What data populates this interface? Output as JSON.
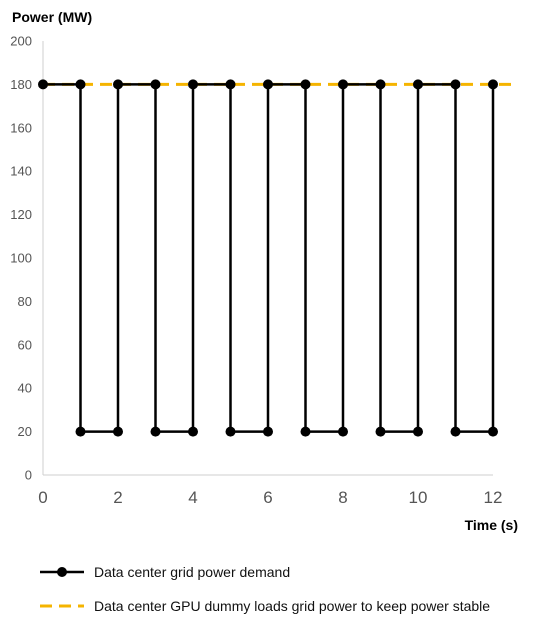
{
  "chart_data": {
    "type": "line",
    "title": "",
    "ylabel": "Power (MW)",
    "xlabel": "Time (s)",
    "ylim": [
      0,
      200
    ],
    "xlim": [
      0,
      12
    ],
    "yticks": [
      0,
      20,
      40,
      60,
      80,
      100,
      120,
      140,
      160,
      180,
      200
    ],
    "xticks": [
      0,
      2,
      4,
      6,
      8,
      10,
      12
    ],
    "grid": false,
    "legend_position": "bottom",
    "series": [
      {
        "name": "Data center grid power demand",
        "color": "#000000",
        "style": "solid-with-markers",
        "x": [
          0,
          1,
          1,
          2,
          2,
          3,
          3,
          4,
          4,
          5,
          5,
          6,
          6,
          7,
          7,
          8,
          8,
          9,
          9,
          10,
          10,
          11,
          11,
          12,
          12
        ],
        "y": [
          180,
          180,
          20,
          20,
          180,
          180,
          20,
          20,
          180,
          180,
          20,
          20,
          180,
          180,
          20,
          20,
          180,
          180,
          20,
          20,
          180,
          180,
          20,
          20,
          180
        ]
      },
      {
        "name": "Data center GPU dummy loads grid power to keep power stable",
        "color": "#F5B400",
        "style": "dashed",
        "x": [
          0,
          12.5
        ],
        "y": [
          180,
          180
        ]
      }
    ]
  }
}
